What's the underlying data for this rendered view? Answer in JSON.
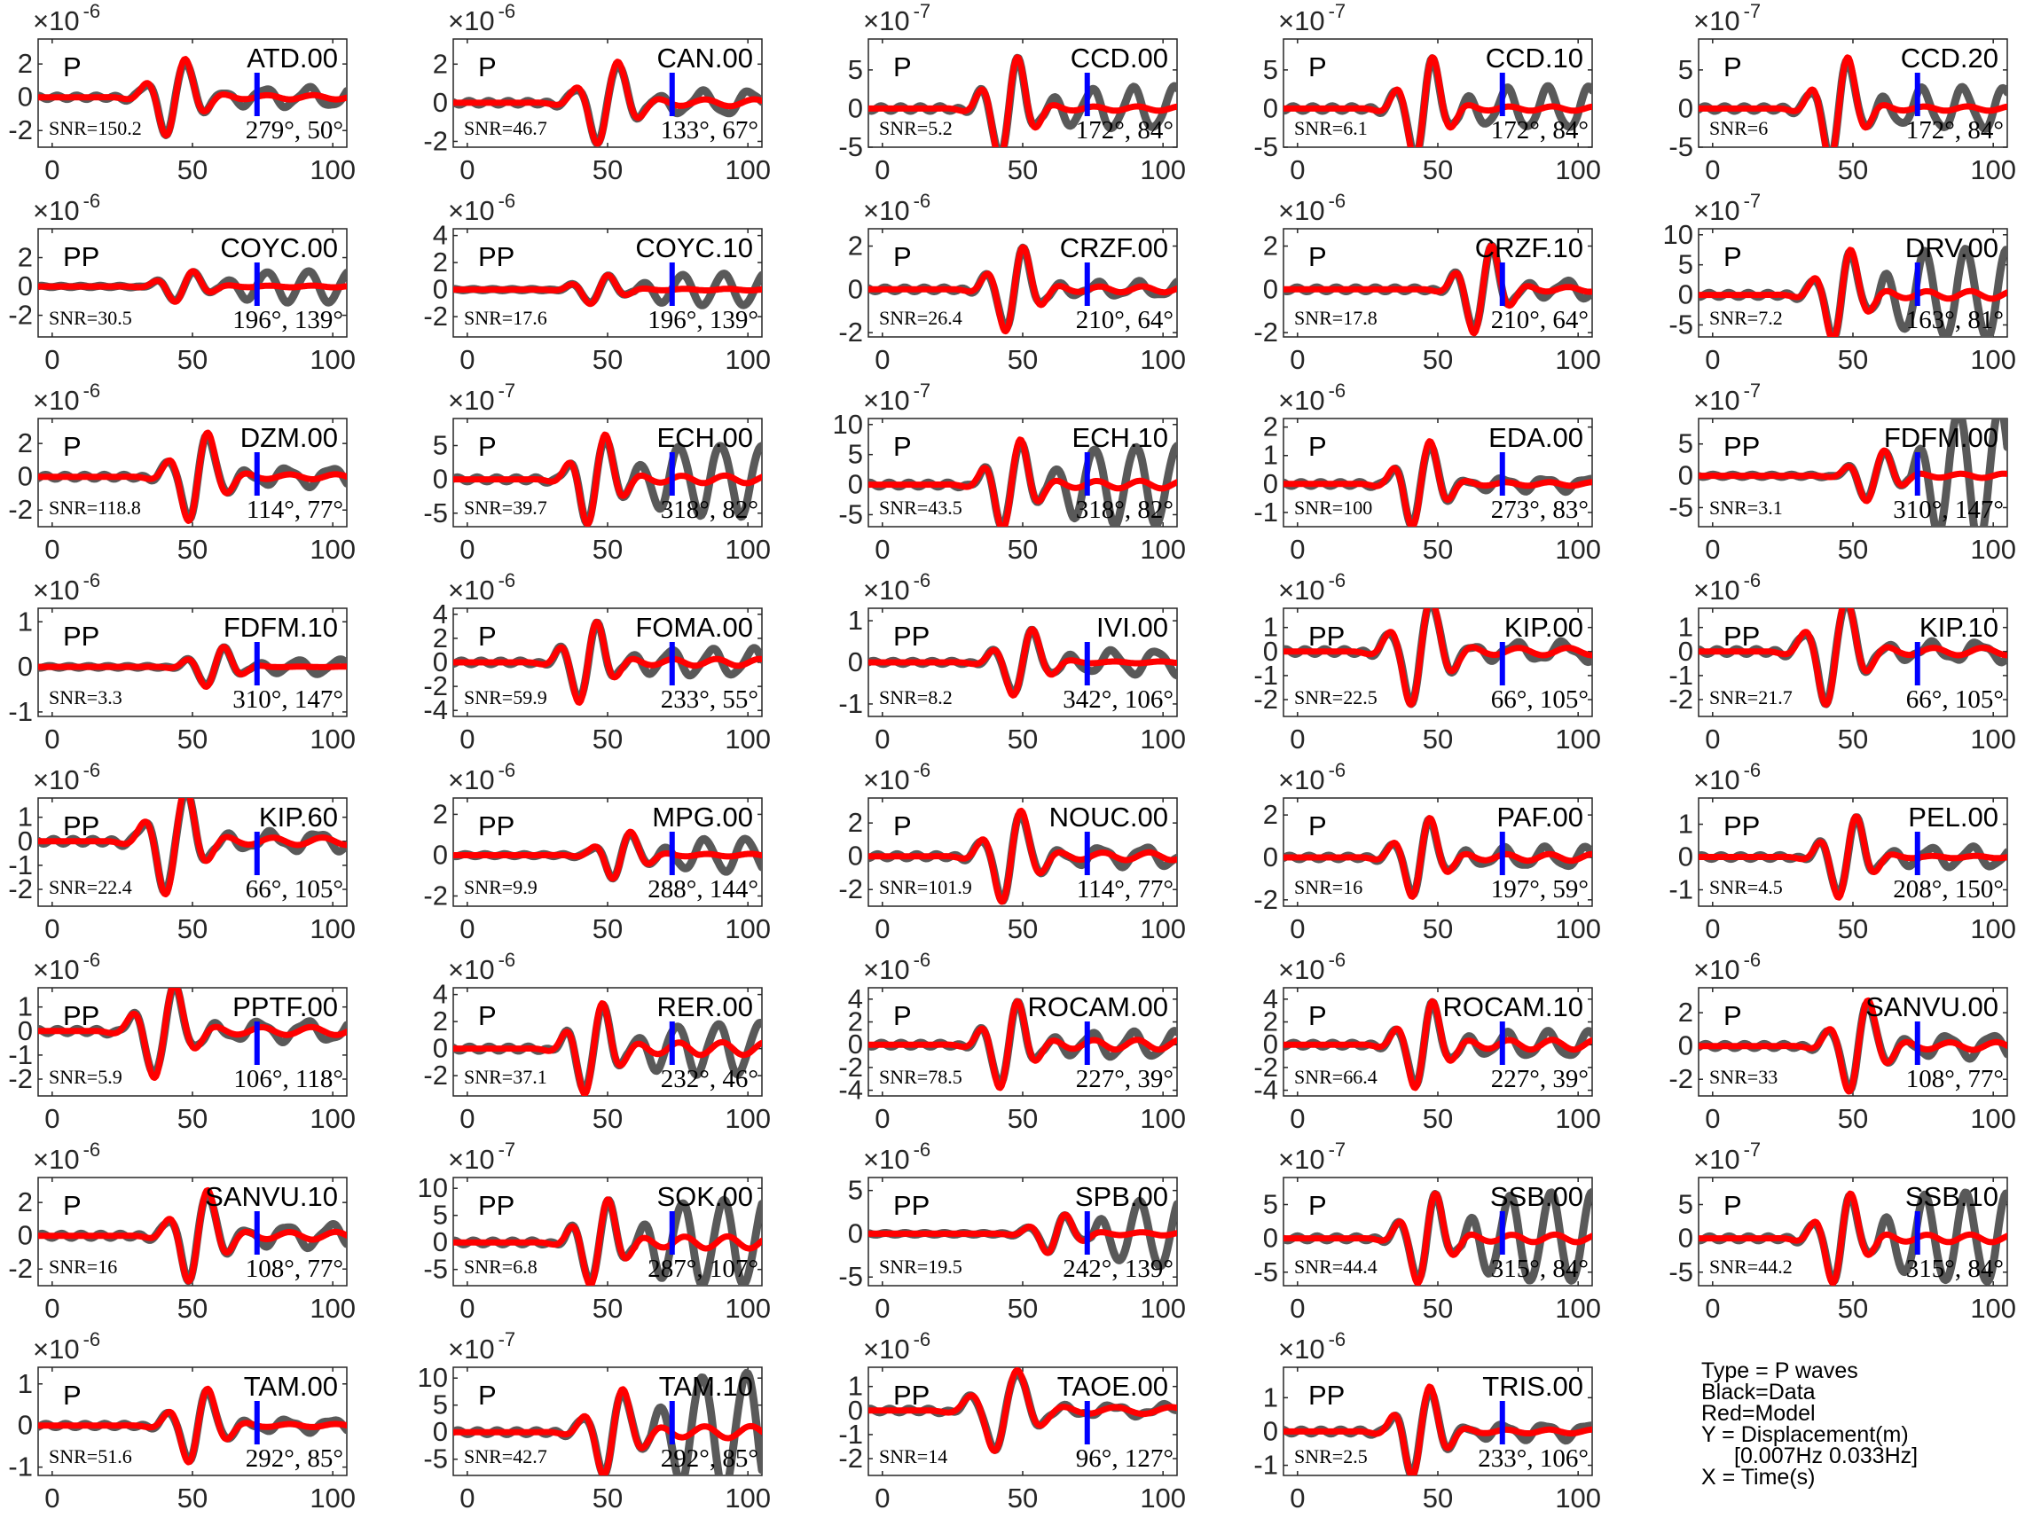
{
  "legend": {
    "lines": [
      "Type = P waves",
      "Black=Data",
      "Red=Model",
      "Y = Displacement(m)",
      "[0.007Hz 0.033Hz]",
      "X = Time(s)"
    ]
  },
  "colors": {
    "data": "#595959",
    "model": "#ff0000",
    "pick": "#0000ff",
    "axes": "#262626"
  },
  "chart_data": {
    "type": "line",
    "layout": "small-multiples",
    "xlim": [
      -5,
      105
    ],
    "xticks": [
      0,
      50,
      100
    ],
    "pick_time": 73,
    "panels": [
      {
        "station": "ATD.00",
        "phase": "P",
        "snr": "SNR=150.2",
        "az": "279°, 50°",
        "exponent": "-6",
        "ylim": [
          -3,
          3.5
        ],
        "yticks": [
          -2,
          0,
          2
        ],
        "t0": 44,
        "period": 15,
        "amp": 2.6,
        "data_tail": 0.6,
        "model_tail": 0.2
      },
      {
        "station": "CAN.00",
        "phase": "P",
        "snr": "SNR=46.7",
        "az": "133°, 67°",
        "exponent": "-6",
        "ylim": [
          -2.3,
          3.3
        ],
        "yticks": [
          -2,
          0,
          2
        ],
        "t0": 50,
        "period": 16,
        "amp": 2.4,
        "data_tail": 0.7,
        "model_tail": 0.3
      },
      {
        "station": "CCD.00",
        "phase": "P",
        "snr": "SNR=5.2",
        "az": "172°, 84°",
        "exponent": "-7",
        "ylim": [
          -5,
          9
        ],
        "yticks": [
          -5,
          0,
          5
        ],
        "t0": 45,
        "period": 14,
        "amp": 7.5,
        "data_tail": 1.0,
        "model_tail": 0.15
      },
      {
        "station": "CCD.10",
        "phase": "P",
        "snr": "SNR=6.1",
        "az": "172°, 84°",
        "exponent": "-7",
        "ylim": [
          -5,
          9
        ],
        "yticks": [
          -5,
          0,
          5
        ],
        "t0": 45,
        "period": 14,
        "amp": 7.5,
        "data_tail": 1.0,
        "model_tail": 0.15
      },
      {
        "station": "CCD.20",
        "phase": "P",
        "snr": "SNR=6",
        "az": "172°, 84°",
        "exponent": "-7",
        "ylim": [
          -5,
          9
        ],
        "yticks": [
          -5,
          0,
          5
        ],
        "t0": 45,
        "period": 14,
        "amp": 7.5,
        "data_tail": 1.0,
        "model_tail": 0.15
      },
      {
        "station": "COYC.00",
        "phase": "PP",
        "snr": "SNR=30.5",
        "az": "196°, 139°",
        "exponent": "-6",
        "ylim": [
          -3.5,
          4
        ],
        "yticks": [
          -2,
          0,
          2
        ],
        "t0": 47,
        "period": 14,
        "amp": 1.2,
        "data_tail": 2.6,
        "model_tail": 0.2
      },
      {
        "station": "COYC.10",
        "phase": "PP",
        "snr": "SNR=17.6",
        "az": "196°, 139°",
        "exponent": "-6",
        "ylim": [
          -3.5,
          4.5
        ],
        "yticks": [
          -2,
          0,
          2,
          4
        ],
        "t0": 47,
        "period": 14,
        "amp": 1.2,
        "data_tail": 2.8,
        "model_tail": 0.2
      },
      {
        "station": "CRZF.00",
        "phase": "P",
        "snr": "SNR=26.4",
        "az": "210°, 64°",
        "exponent": "-6",
        "ylim": [
          -2.2,
          2.8
        ],
        "yticks": [
          -2,
          0,
          2
        ],
        "t0": 47,
        "period": 14,
        "amp": 2.2,
        "data_tail": 0.4,
        "model_tail": 0.25
      },
      {
        "station": "CRZF.10",
        "phase": "P",
        "snr": "SNR=17.8",
        "az": "210°, 64°",
        "exponent": "-6",
        "ylim": [
          -2.2,
          2.8
        ],
        "yticks": [
          -2,
          0,
          2
        ],
        "t0": 66,
        "period": 14,
        "amp": 2.3,
        "data_tail": 0.5,
        "model_tail": 0.2
      },
      {
        "station": "DRV.00",
        "phase": "P",
        "snr": "SNR=7.2",
        "az": "163°, 81°",
        "exponent": "-7",
        "ylim": [
          -7,
          11
        ],
        "yticks": [
          -5,
          0,
          5,
          10
        ],
        "t0": 46,
        "period": 14,
        "amp": 8.5,
        "data_tail": 2.5,
        "model_tail": 0.3
      },
      {
        "station": "DZM.00",
        "phase": "P",
        "snr": "SNR=118.8",
        "az": "114°, 77°",
        "exponent": "-6",
        "ylim": [
          -3,
          3.5
        ],
        "yticks": [
          -2,
          0,
          2
        ],
        "t0": 52,
        "period": 15,
        "amp": 3.0,
        "data_tail": 0.5,
        "model_tail": 0.2
      },
      {
        "station": "ECH.00",
        "phase": "P",
        "snr": "SNR=39.7",
        "az": "318°, 82°",
        "exponent": "-7",
        "ylim": [
          -7,
          9
        ],
        "yticks": [
          -5,
          0,
          5
        ],
        "t0": 46,
        "period": 14,
        "amp": 7.5,
        "data_tail": 2.0,
        "model_tail": 0.3
      },
      {
        "station": "ECH.10",
        "phase": "P",
        "snr": "SNR=43.5",
        "az": "318°, 82°",
        "exponent": "-7",
        "ylim": [
          -7,
          11
        ],
        "yticks": [
          -5,
          0,
          5,
          10
        ],
        "t0": 46,
        "period": 14,
        "amp": 8.5,
        "data_tail": 2.2,
        "model_tail": 0.3
      },
      {
        "station": "EDA.00",
        "phase": "P",
        "snr": "SNR=100",
        "az": "273°, 83°",
        "exponent": "-6",
        "ylim": [
          -1.5,
          2.3
        ],
        "yticks": [
          -1,
          0,
          1,
          2
        ],
        "t0": 44,
        "period": 14,
        "amp": 1.7,
        "data_tail": 0.35,
        "model_tail": 0.15
      },
      {
        "station": "FDFM.00",
        "phase": "PP",
        "snr": "SNR=3.1",
        "az": "310°, 147°",
        "exponent": "-7",
        "ylim": [
          -8,
          9
        ],
        "yticks": [
          -5,
          0,
          5
        ],
        "t0": 58,
        "period": 14,
        "amp": 4.5,
        "data_tail": 7.0,
        "model_tail": 0.3
      },
      {
        "station": "FDFM.10",
        "phase": "PP",
        "snr": "SNR=3.3",
        "az": "310°, 147°",
        "exponent": "-6",
        "ylim": [
          -1.1,
          1.3
        ],
        "yticks": [
          -1,
          0,
          1
        ],
        "t0": 58,
        "period": 14,
        "amp": 0.5,
        "data_tail": 0.9,
        "model_tail": 0.05
      },
      {
        "station": "FOMA.00",
        "phase": "P",
        "snr": "SNR=59.9",
        "az": "233°, 55°",
        "exponent": "-6",
        "ylim": [
          -4.5,
          4.5
        ],
        "yticks": [
          -4,
          -2,
          0,
          2,
          4
        ],
        "t0": 43,
        "period": 14,
        "amp": 3.8,
        "data_tail": 0.8,
        "model_tail": 0.3
      },
      {
        "station": "IVI.00",
        "phase": "PP",
        "snr": "SNR=8.2",
        "az": "342°, 106°",
        "exponent": "-6",
        "ylim": [
          -1.3,
          1.3
        ],
        "yticks": [
          -1,
          0,
          1
        ],
        "t0": 50,
        "period": 15,
        "amp": 0.9,
        "data_tail": 0.9,
        "model_tail": 0.1
      },
      {
        "station": "KIP.00",
        "phase": "PP",
        "snr": "SNR=22.5",
        "az": "66°, 105°",
        "exponent": "-6",
        "ylim": [
          -2.7,
          1.8
        ],
        "yticks": [
          -2,
          -1,
          0,
          1
        ],
        "t0": 44,
        "period": 16,
        "amp": 2.5,
        "data_tail": 0.4,
        "model_tail": 0.25
      },
      {
        "station": "KIP.10",
        "phase": "PP",
        "snr": "SNR=21.7",
        "az": "66°, 105°",
        "exponent": "-6",
        "ylim": [
          -2.7,
          1.8
        ],
        "yticks": [
          -2,
          -1,
          0,
          1
        ],
        "t0": 44,
        "period": 16,
        "amp": 2.5,
        "data_tail": 0.4,
        "model_tail": 0.25
      },
      {
        "station": "KIP.60",
        "phase": "PP",
        "snr": "SNR=22.4",
        "az": "66°, 105°",
        "exponent": "-6",
        "ylim": [
          -2.7,
          1.8
        ],
        "yticks": [
          -2,
          -1,
          0,
          1
        ],
        "t0": 44,
        "period": 16,
        "amp": 2.5,
        "data_tail": 0.4,
        "model_tail": 0.25
      },
      {
        "station": "MPG.00",
        "phase": "PP",
        "snr": "SNR=9.9",
        "az": "288°, 144°",
        "exponent": "-6",
        "ylim": [
          -2.5,
          2.8
        ],
        "yticks": [
          -2,
          0,
          2
        ],
        "t0": 55,
        "period": 14,
        "amp": 1.3,
        "data_tail": 1.8,
        "model_tail": 0.2
      },
      {
        "station": "NOUC.00",
        "phase": "P",
        "snr": "SNR=101.9",
        "az": "114°, 77°",
        "exponent": "-6",
        "ylim": [
          -3,
          3.5
        ],
        "yticks": [
          -2,
          0,
          2
        ],
        "t0": 46,
        "period": 15,
        "amp": 3.1,
        "data_tail": 0.5,
        "model_tail": 0.3
      },
      {
        "station": "PAF.00",
        "phase": "P",
        "snr": "SNR=16",
        "az": "197°, 59°",
        "exponent": "-6",
        "ylim": [
          -2.3,
          2.8
        ],
        "yticks": [
          -2,
          0,
          2
        ],
        "t0": 44,
        "period": 14,
        "amp": 2.1,
        "data_tail": 0.6,
        "model_tail": 0.3
      },
      {
        "station": "PEL.00",
        "phase": "PP",
        "snr": "SNR=4.5",
        "az": "208°, 150°",
        "exponent": "-6",
        "ylim": [
          -1.5,
          1.8
        ],
        "yticks": [
          -1,
          0,
          1
        ],
        "t0": 48,
        "period": 14,
        "amp": 1.4,
        "data_tail": 0.6,
        "model_tail": 0.1
      },
      {
        "station": "PPTF.00",
        "phase": "PP",
        "snr": "SNR=5.9",
        "az": "106°, 118°",
        "exponent": "-6",
        "ylim": [
          -2.7,
          1.8
        ],
        "yticks": [
          -2,
          -1,
          0,
          1
        ],
        "t0": 40,
        "period": 16,
        "amp": 2.2,
        "data_tail": 0.5,
        "model_tail": 0.3
      },
      {
        "station": "RER.00",
        "phase": "P",
        "snr": "SNR=37.1",
        "az": "232°, 46°",
        "exponent": "-6",
        "ylim": [
          -3.5,
          4.5
        ],
        "yticks": [
          -2,
          0,
          2,
          4
        ],
        "t0": 45,
        "period": 14,
        "amp": 3.8,
        "data_tail": 1.4,
        "model_tail": 0.5
      },
      {
        "station": "ROCAM.00",
        "phase": "P",
        "snr": "SNR=78.5",
        "az": "227°, 39°",
        "exponent": "-6",
        "ylim": [
          -4.5,
          5
        ],
        "yticks": [
          -4,
          -2,
          0,
          2,
          4
        ],
        "t0": 45,
        "period": 14,
        "amp": 4.3,
        "data_tail": 0.7,
        "model_tail": 0.4
      },
      {
        "station": "ROCAM.10",
        "phase": "P",
        "snr": "SNR=66.4",
        "az": "227°, 39°",
        "exponent": "-6",
        "ylim": [
          -4.5,
          5
        ],
        "yticks": [
          -4,
          -2,
          0,
          2,
          4
        ],
        "t0": 45,
        "period": 14,
        "amp": 4.3,
        "data_tail": 0.7,
        "model_tail": 0.4
      },
      {
        "station": "SANVU.00",
        "phase": "P",
        "snr": "SNR=33",
        "az": "108°, 77°",
        "exponent": "-6",
        "ylim": [
          -3,
          3.5
        ],
        "yticks": [
          -2,
          0,
          2
        ],
        "t0": 52,
        "period": 15,
        "amp": 3.1,
        "data_tail": 0.6,
        "model_tail": 0.3
      },
      {
        "station": "SANVU.10",
        "phase": "P",
        "snr": "SNR=16",
        "az": "108°, 77°",
        "exponent": "-6",
        "ylim": [
          -3,
          3.5
        ],
        "yticks": [
          -2,
          0,
          2
        ],
        "t0": 52,
        "period": 15,
        "amp": 3.1,
        "data_tail": 0.6,
        "model_tail": 0.3
      },
      {
        "station": "SOK.00",
        "phase": "PP",
        "snr": "SNR=6.8",
        "az": "287°, 107°",
        "exponent": "-7",
        "ylim": [
          -8,
          12
        ],
        "yticks": [
          -5,
          0,
          5,
          10
        ],
        "t0": 47,
        "period": 14,
        "amp": 9,
        "data_tail": 2.5,
        "model_tail": 0.5
      },
      {
        "station": "SPB.00",
        "phase": "PP",
        "snr": "SNR=19.5",
        "az": "242°, 139°",
        "exponent": "-6",
        "ylim": [
          -6,
          6.5
        ],
        "yticks": [
          -5,
          0,
          5
        ],
        "t0": 62,
        "period": 14,
        "amp": 2.5,
        "data_tail": 4.5,
        "model_tail": 0.3
      },
      {
        "station": "SSB.00",
        "phase": "P",
        "snr": "SNR=44.4",
        "az": "315°, 84°",
        "exponent": "-7",
        "ylim": [
          -7,
          9
        ],
        "yticks": [
          -5,
          0,
          5
        ],
        "t0": 46,
        "period": 14,
        "amp": 7.5,
        "data_tail": 2.5,
        "model_tail": 0.3
      },
      {
        "station": "SSB.10",
        "phase": "P",
        "snr": "SNR=44.2",
        "az": "315°, 84°",
        "exponent": "-7",
        "ylim": [
          -7,
          9
        ],
        "yticks": [
          -5,
          0,
          5
        ],
        "t0": 46,
        "period": 14,
        "amp": 7.5,
        "data_tail": 2.5,
        "model_tail": 0.3
      },
      {
        "station": "TAM.00",
        "phase": "P",
        "snr": "SNR=51.6",
        "az": "292°, 85°",
        "exponent": "-6",
        "ylim": [
          -1.2,
          1.4
        ],
        "yticks": [
          -1,
          0,
          1
        ],
        "t0": 52,
        "period": 15,
        "amp": 1.0,
        "data_tail": 0.4,
        "model_tail": 0.15
      },
      {
        "station": "TAM.10",
        "phase": "P",
        "snr": "SNR=42.7",
        "az": "292°, 85°",
        "exponent": "-7",
        "ylim": [
          -8,
          12
        ],
        "yticks": [
          -5,
          0,
          5,
          10
        ],
        "t0": 52,
        "period": 15,
        "amp": 9,
        "data_tail": 3.5,
        "model_tail": 0.5
      },
      {
        "station": "TAOE.00",
        "phase": "PP",
        "snr": "SNR=14",
        "az": "96°, 127°",
        "exponent": "-6",
        "ylim": [
          -2.7,
          1.8
        ],
        "yticks": [
          -2,
          -1,
          0,
          1
        ],
        "t0": 44,
        "period": 18,
        "amp": 1.9,
        "data_tail": 0.3,
        "model_tail": 0.3
      },
      {
        "station": "TRIS.00",
        "phase": "PP",
        "snr": "SNR=2.5",
        "az": "233°, 106°",
        "exponent": "-6",
        "ylim": [
          -1.3,
          1.9
        ],
        "yticks": [
          -1,
          0,
          1
        ],
        "t0": 44,
        "period": 14,
        "amp": 1.5,
        "data_tail": 0.4,
        "model_tail": 0.15
      }
    ]
  }
}
